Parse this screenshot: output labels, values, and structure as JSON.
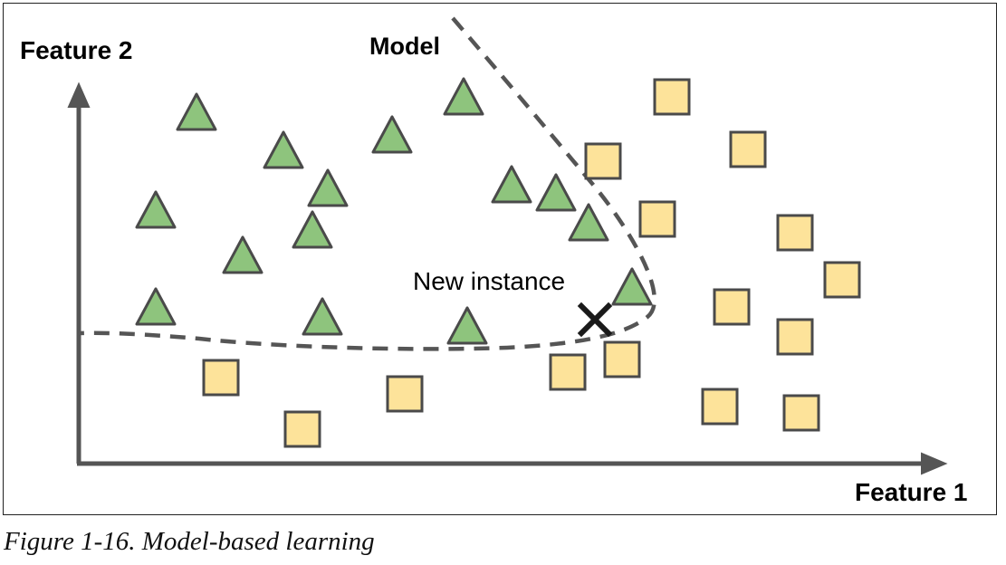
{
  "figure": {
    "y_axis_label": "Feature 2",
    "x_axis_label": "Feature 1",
    "model_label": "Model",
    "new_instance_label": "New instance",
    "caption": "Figure 1-16. Model-based learning"
  },
  "colors": {
    "triangle_fill": "#8ec47d",
    "square_fill": "#fde39a",
    "marker_stroke": "#4a4a4a",
    "axis": "#555555",
    "boundary": "#555555",
    "cross": "#1a1a1a"
  },
  "icons": {
    "triangle": "green-triangle-icon",
    "square": "yellow-square-icon",
    "new_instance": "cross-x-icon"
  }
}
